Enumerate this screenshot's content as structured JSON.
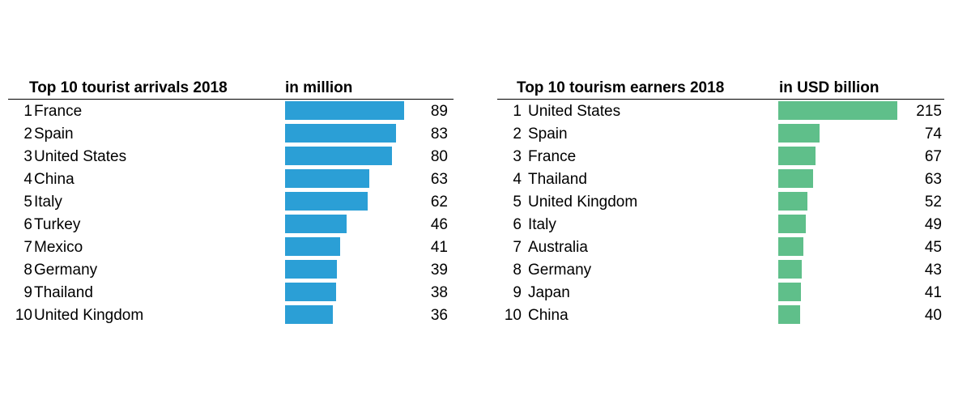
{
  "chart_data": [
    {
      "type": "bar",
      "title": "Top 10 tourist arrivals 2018",
      "unit_label": "in million",
      "color": "#2b9fd6",
      "xlim": [
        0,
        89
      ],
      "rows": [
        {
          "rank": "1",
          "label": "France",
          "value": 89
        },
        {
          "rank": "2",
          "label": "Spain",
          "value": 83
        },
        {
          "rank": "3",
          "label": "United States",
          "value": 80
        },
        {
          "rank": "4",
          "label": "China",
          "value": 63
        },
        {
          "rank": "5",
          "label": "Italy",
          "value": 62
        },
        {
          "rank": "6",
          "label": "Turkey",
          "value": 46
        },
        {
          "rank": "7",
          "label": "Mexico",
          "value": 41
        },
        {
          "rank": "8",
          "label": "Germany",
          "value": 39
        },
        {
          "rank": "9",
          "label": "Thailand",
          "value": 38
        },
        {
          "rank": "10",
          "label": "United Kingdom",
          "value": 36
        }
      ]
    },
    {
      "type": "bar",
      "title": "Top 10 tourism earners 2018",
      "unit_label": "in USD billion",
      "color": "#5fbf8a",
      "xlim": [
        0,
        215
      ],
      "rows": [
        {
          "rank": "1",
          "label": "United States",
          "value": 215
        },
        {
          "rank": "2",
          "label": "Spain",
          "value": 74
        },
        {
          "rank": "3",
          "label": "France",
          "value": 67
        },
        {
          "rank": "4",
          "label": "Thailand",
          "value": 63
        },
        {
          "rank": "5",
          "label": "United Kingdom",
          "value": 52
        },
        {
          "rank": "6",
          "label": "Italy",
          "value": 49
        },
        {
          "rank": "7",
          "label": "Australia",
          "value": 45
        },
        {
          "rank": "8",
          "label": "Germany",
          "value": 43
        },
        {
          "rank": "9",
          "label": "Japan",
          "value": 41
        },
        {
          "rank": "10",
          "label": "China",
          "value": 40
        }
      ]
    }
  ]
}
